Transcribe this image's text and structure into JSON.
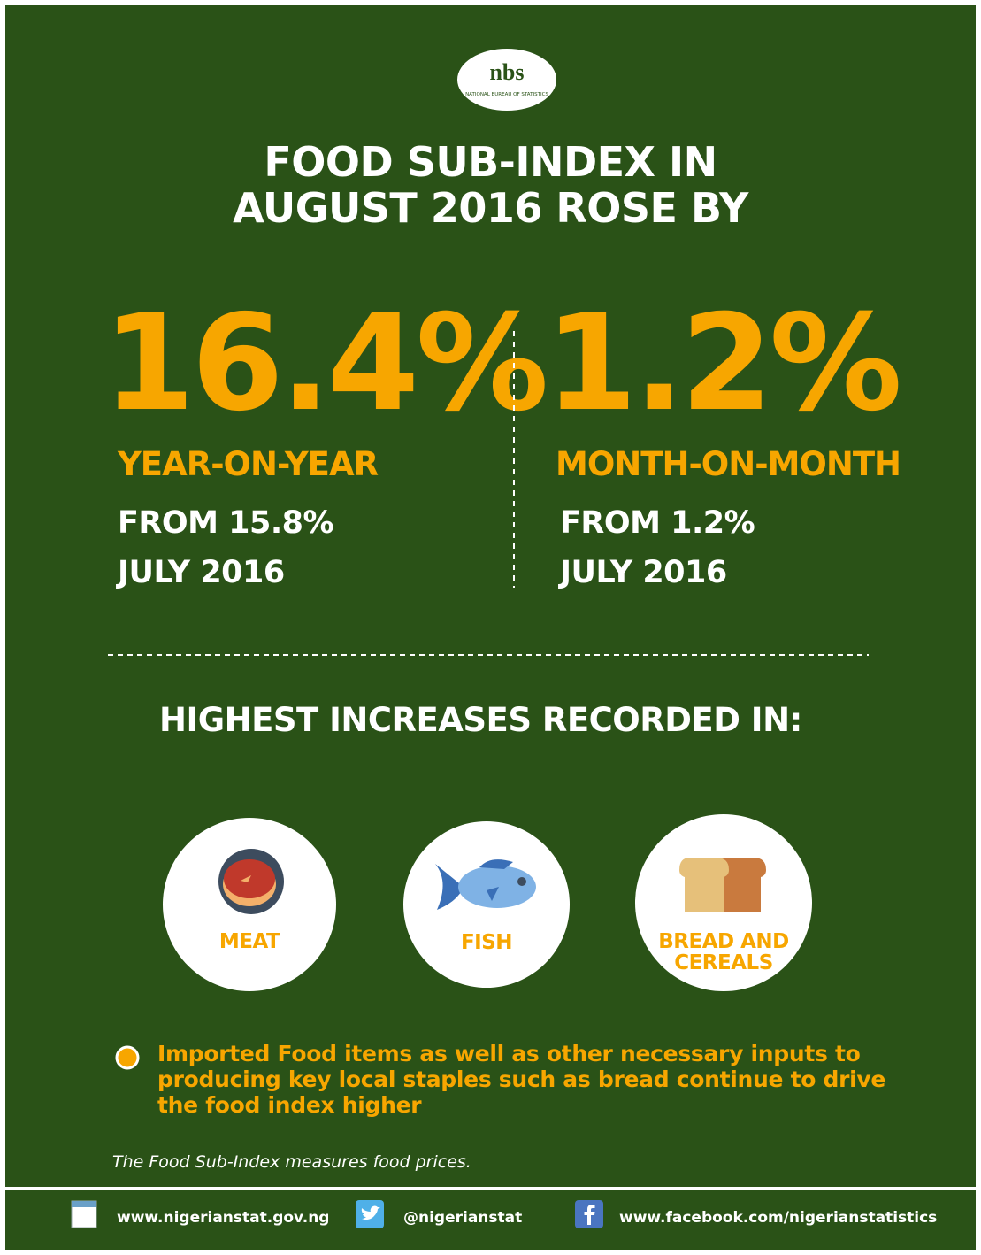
{
  "logo": {
    "mark": "nbs",
    "name": "NATIONAL BUREAU OF STATISTICS"
  },
  "title": [
    "FOOD SUB-INDEX IN",
    "AUGUST 2016 ROSE BY"
  ],
  "stats": [
    {
      "value": "16.4%",
      "label": "YEAR-ON-YEAR",
      "from": "FROM 15.8%",
      "period": "JULY 2016"
    },
    {
      "value": "1.2%",
      "label": "MONTH-ON-MONTH",
      "from": "FROM 1.2%",
      "period": "JULY 2016"
    }
  ],
  "highest": {
    "heading": "HIGHEST INCREASES RECORDED IN:",
    "items": [
      "MEAT",
      "FISH",
      "BREAD AND\nCEREALS"
    ]
  },
  "note": [
    "Imported Food items as well as other necessary inputs to",
    "producing key local staples such as bread continue to drive",
    "the food index higher"
  ],
  "definition": "The Food Sub-Index measures food prices.",
  "footer": [
    "www.nigerianstat.gov.ng",
    "@nigerianstat",
    "www.facebook.com/nigerianstatistics"
  ]
}
